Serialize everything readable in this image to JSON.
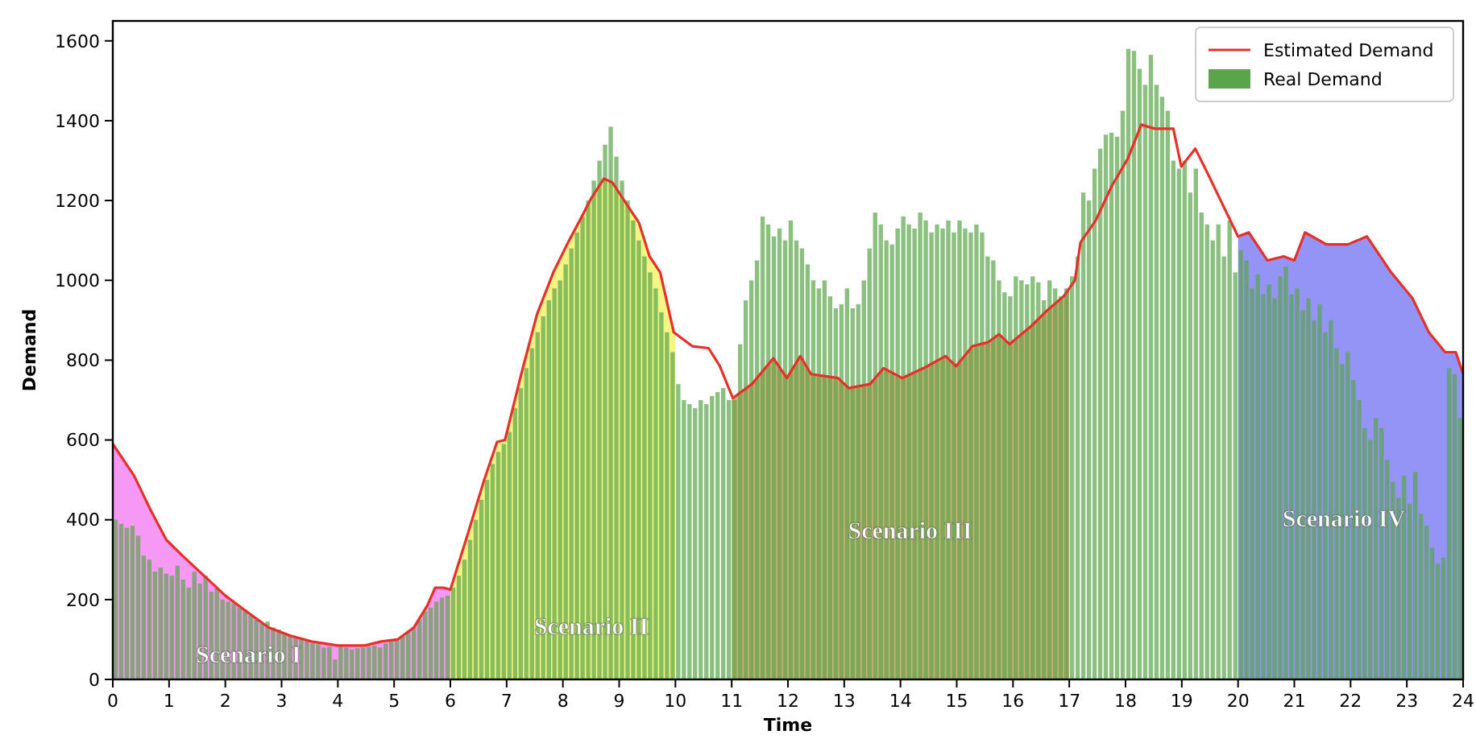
{
  "chart_data": {
    "type": "bar",
    "xlabel": "Time",
    "ylabel": "Demand",
    "xlim": [
      0,
      24
    ],
    "ylim": [
      0,
      1650
    ],
    "xticks": [
      0,
      1,
      2,
      3,
      4,
      5,
      6,
      7,
      8,
      9,
      10,
      11,
      12,
      13,
      14,
      15,
      16,
      17,
      18,
      19,
      20,
      21,
      22,
      23,
      24
    ],
    "yticks": [
      0,
      200,
      400,
      600,
      800,
      1000,
      1200,
      1400,
      1600
    ],
    "grid": false,
    "legend": "top right",
    "series": [
      {
        "name": "Real Demand",
        "color": "#5aa54b",
        "x": [
          0.05,
          0.15,
          0.25,
          0.35,
          0.45,
          0.55,
          0.65,
          0.75,
          0.85,
          0.95,
          1.05,
          1.15,
          1.25,
          1.35,
          1.45,
          1.55,
          1.65,
          1.75,
          1.85,
          1.95,
          2.05,
          2.15,
          2.25,
          2.35,
          2.45,
          2.55,
          2.65,
          2.75,
          2.85,
          2.95,
          3.05,
          3.15,
          3.25,
          3.35,
          3.45,
          3.55,
          3.65,
          3.75,
          3.85,
          3.95,
          4.05,
          4.15,
          4.25,
          4.35,
          4.45,
          4.55,
          4.65,
          4.75,
          4.85,
          4.95,
          5.05,
          5.15,
          5.25,
          5.35,
          5.45,
          5.55,
          5.65,
          5.75,
          5.85,
          5.95,
          6.05,
          6.15,
          6.25,
          6.35,
          6.45,
          6.55,
          6.65,
          6.75,
          6.85,
          6.95,
          7.05,
          7.15,
          7.25,
          7.35,
          7.45,
          7.55,
          7.65,
          7.75,
          7.85,
          7.95,
          8.05,
          8.15,
          8.25,
          8.35,
          8.45,
          8.55,
          8.65,
          8.75,
          8.85,
          8.95,
          9.05,
          9.15,
          9.25,
          9.35,
          9.45,
          9.55,
          9.65,
          9.75,
          9.85,
          9.95,
          10.05,
          10.15,
          10.25,
          10.35,
          10.45,
          10.55,
          10.65,
          10.75,
          10.85,
          10.95,
          11.05,
          11.15,
          11.25,
          11.35,
          11.45,
          11.55,
          11.65,
          11.75,
          11.85,
          11.95,
          12.05,
          12.15,
          12.25,
          12.35,
          12.45,
          12.55,
          12.65,
          12.75,
          12.85,
          12.95,
          13.05,
          13.15,
          13.25,
          13.35,
          13.45,
          13.55,
          13.65,
          13.75,
          13.85,
          13.95,
          14.05,
          14.15,
          14.25,
          14.35,
          14.45,
          14.55,
          14.65,
          14.75,
          14.85,
          14.95,
          15.05,
          15.15,
          15.25,
          15.35,
          15.45,
          15.55,
          15.65,
          15.75,
          15.85,
          15.95,
          16.05,
          16.15,
          16.25,
          16.35,
          16.45,
          16.55,
          16.65,
          16.75,
          16.85,
          16.95,
          17.05,
          17.15,
          17.25,
          17.35,
          17.45,
          17.55,
          17.65,
          17.75,
          17.85,
          17.95,
          18.05,
          18.15,
          18.25,
          18.35,
          18.45,
          18.55,
          18.65,
          18.75,
          18.85,
          18.95,
          19.05,
          19.15,
          19.25,
          19.35,
          19.45,
          19.55,
          19.65,
          19.75,
          19.85,
          19.95,
          20.05,
          20.15,
          20.25,
          20.35,
          20.45,
          20.55,
          20.65,
          20.75,
          20.85,
          20.95,
          21.05,
          21.15,
          21.25,
          21.35,
          21.45,
          21.55,
          21.65,
          21.75,
          21.85,
          21.95,
          22.05,
          22.15,
          22.25,
          22.35,
          22.45,
          22.55,
          22.65,
          22.75,
          22.85,
          22.95,
          23.05,
          23.15,
          23.25,
          23.35,
          23.45,
          23.55,
          23.65,
          23.75,
          23.85,
          23.95
        ],
        "values": [
          400,
          390,
          380,
          385,
          360,
          310,
          300,
          270,
          280,
          265,
          260,
          285,
          250,
          230,
          270,
          240,
          260,
          220,
          230,
          200,
          195,
          190,
          180,
          175,
          160,
          150,
          140,
          145,
          130,
          125,
          115,
          110,
          105,
          100,
          95,
          90,
          88,
          80,
          82,
          50,
          85,
          80,
          75,
          78,
          80,
          82,
          85,
          80,
          90,
          95,
          100,
          110,
          120,
          130,
          150,
          170,
          180,
          195,
          205,
          210,
          230,
          260,
          300,
          350,
          400,
          450,
          500,
          540,
          570,
          590,
          620,
          680,
          730,
          780,
          830,
          870,
          910,
          950,
          980,
          1000,
          1040,
          1080,
          1120,
          1160,
          1200,
          1250,
          1300,
          1340,
          1385,
          1310,
          1250,
          1200,
          1150,
          1100,
          1060,
          1020,
          980,
          920,
          870,
          820,
          740,
          700,
          690,
          680,
          700,
          690,
          710,
          720,
          730,
          700,
          700,
          840,
          950,
          1000,
          1050,
          1160,
          1140,
          1110,
          1130,
          1100,
          1150,
          1100,
          1080,
          1040,
          1000,
          980,
          1000,
          960,
          930,
          940,
          980,
          930,
          940,
          1000,
          1080,
          1170,
          1140,
          1100,
          1090,
          1130,
          1160,
          1140,
          1130,
          1170,
          1150,
          1120,
          1140,
          1130,
          1150,
          1120,
          1150,
          1130,
          1120,
          1140,
          1120,
          1060,
          1050,
          1000,
          970,
          960,
          1010,
          1000,
          990,
          1010,
          995,
          950,
          1000,
          980,
          960,
          980,
          1010,
          1060,
          1220,
          1200,
          1280,
          1330,
          1365,
          1370,
          1360,
          1425,
          1580,
          1575,
          1530,
          1490,
          1565,
          1490,
          1460,
          1425,
          1300,
          1280,
          1300,
          1220,
          1280,
          1170,
          1140,
          1100,
          1140,
          1060,
          1150,
          1020,
          1075,
          1050,
          980,
          1015,
          965,
          990,
          955,
          1010,
          1035,
          965,
          980,
          925,
          955,
          900,
          940,
          870,
          900,
          830,
          790,
          820,
          750,
          700,
          630,
          600,
          655,
          630,
          550,
          495,
          455,
          510,
          440,
          520,
          415,
          385,
          330,
          290,
          305,
          780,
          765,
          655
        ]
      },
      {
        "name": "Scenario I",
        "type": "area",
        "color": "#ee55ee",
        "x": [
          0,
          0.38,
          0.67,
          0.95,
          1.24,
          1.62,
          2,
          2.38,
          2.77,
          3.15,
          3.53,
          4,
          4.48,
          4.77,
          5.06,
          5.35,
          5.59,
          5.73,
          5.88,
          6
        ],
        "values": [
          590,
          510,
          425,
          350,
          310,
          260,
          210,
          170,
          130,
          110,
          95,
          85,
          85,
          95,
          100,
          130,
          185,
          230,
          230,
          225
        ]
      },
      {
        "name": "Scenario II",
        "type": "area",
        "color": "#eeee33",
        "x": [
          6,
          6.3,
          6.59,
          6.83,
          6.97,
          7.26,
          7.54,
          7.83,
          8.11,
          8.3,
          8.5,
          8.73,
          8.88,
          9.16,
          9.35,
          9.54,
          9.73,
          9.97,
          10
        ],
        "values": [
          225,
          360,
          495,
          595,
          600,
          765,
          915,
          1020,
          1100,
          1150,
          1205,
          1255,
          1245,
          1185,
          1145,
          1060,
          1020,
          870,
          868
        ]
      },
      {
        "name": "Scenario III",
        "type": "area",
        "color": "#b07a1a",
        "x": [
          11,
          11.02,
          11.36,
          11.74,
          11.98,
          12.22,
          12.41,
          12.89,
          13.08,
          13.46,
          13.7,
          14.03,
          14.41,
          14.8,
          14.99,
          15.28,
          15.56,
          15.75,
          15.94,
          16.32,
          16.61,
          16.9,
          17
        ],
        "values": [
          708,
          705,
          740,
          805,
          755,
          810,
          765,
          755,
          730,
          740,
          780,
          755,
          780,
          810,
          785,
          835,
          845,
          865,
          840,
          885,
          925,
          960,
          980
        ]
      },
      {
        "name": "Scenario IV",
        "type": "area",
        "color": "#4d4df0",
        "x": [
          20,
          20.19,
          20.52,
          20.81,
          21,
          21.19,
          21.57,
          21.95,
          22.29,
          22.72,
          23.1,
          23.39,
          23.68,
          23.87,
          24
        ],
        "values": [
          1110,
          1120,
          1050,
          1060,
          1050,
          1120,
          1090,
          1090,
          1110,
          1020,
          955,
          870,
          820,
          820,
          765
        ]
      },
      {
        "name": "Estimated Demand",
        "type": "line",
        "color": "#e8302a",
        "line_style": "solid",
        "marker": "none",
        "x": [
          0,
          0.38,
          0.67,
          0.95,
          1.24,
          1.62,
          2,
          2.38,
          2.77,
          3.15,
          3.53,
          4,
          4.48,
          4.77,
          5.06,
          5.35,
          5.59,
          5.73,
          5.88,
          6,
          6.3,
          6.59,
          6.83,
          6.97,
          7.26,
          7.54,
          7.83,
          8.11,
          8.3,
          8.5,
          8.73,
          8.88,
          9.16,
          9.35,
          9.54,
          9.73,
          9.97,
          10.3,
          10.59,
          10.79,
          11.02,
          11.36,
          11.74,
          11.98,
          12.22,
          12.41,
          12.89,
          13.08,
          13.46,
          13.7,
          14.03,
          14.41,
          14.8,
          14.99,
          15.28,
          15.56,
          15.75,
          15.94,
          16.32,
          16.61,
          16.9,
          17.1,
          17.2,
          17.47,
          17.75,
          18.04,
          18.28,
          18.52,
          18.85,
          18.99,
          19.24,
          19.47,
          19.76,
          20,
          20.19,
          20.52,
          20.81,
          21,
          21.19,
          21.57,
          21.95,
          22.29,
          22.72,
          23.1,
          23.39,
          23.68,
          23.87,
          24
        ],
        "values": [
          590,
          510,
          425,
          350,
          310,
          260,
          210,
          170,
          130,
          110,
          95,
          85,
          85,
          95,
          100,
          130,
          185,
          230,
          230,
          225,
          360,
          495,
          595,
          600,
          765,
          915,
          1020,
          1100,
          1150,
          1205,
          1255,
          1245,
          1185,
          1145,
          1060,
          1020,
          870,
          835,
          830,
          785,
          705,
          740,
          805,
          755,
          810,
          765,
          755,
          730,
          740,
          780,
          755,
          780,
          810,
          785,
          835,
          845,
          865,
          840,
          885,
          925,
          960,
          1000,
          1095,
          1150,
          1235,
          1305,
          1390,
          1380,
          1380,
          1285,
          1330,
          1265,
          1180,
          1110,
          1120,
          1050,
          1060,
          1050,
          1120,
          1090,
          1090,
          1110,
          1020,
          955,
          870,
          820,
          820,
          765
        ]
      }
    ]
  }
}
